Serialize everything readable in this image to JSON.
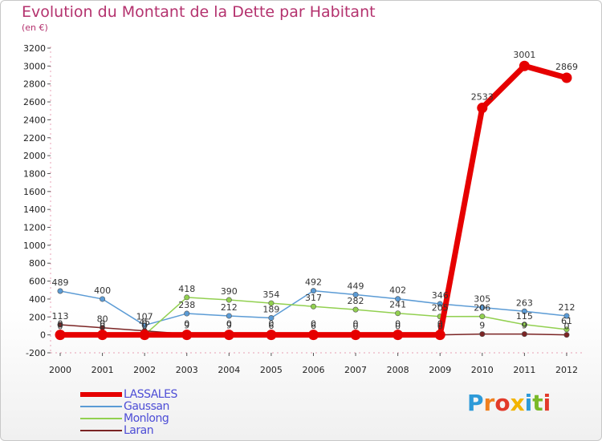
{
  "title": "Evolution du Montant de la Dette par Habitant",
  "subtitle": "(en €)",
  "logo_text": "Proxiti",
  "chart_data": {
    "type": "line",
    "x": [
      2000,
      2001,
      2002,
      2003,
      2004,
      2005,
      2006,
      2007,
      2008,
      2009,
      2010,
      2011,
      2012
    ],
    "ylim": [
      -200,
      3200
    ],
    "yticks": [
      -200,
      0,
      200,
      400,
      600,
      800,
      1000,
      1200,
      1400,
      1600,
      1800,
      2000,
      2200,
      2400,
      2600,
      2800,
      3000,
      3200
    ],
    "grid": false,
    "legend_position": "bottom-left",
    "series": [
      {
        "name": "Gaussan",
        "color": "#5b9bd5",
        "values": [
          489,
          400,
          107,
          238,
          212,
          189,
          492,
          449,
          402,
          346,
          305,
          263,
          212
        ],
        "labels": [
          "489",
          "400",
          "107",
          "238",
          "212",
          "189",
          "492",
          "449",
          "402",
          "346",
          "305",
          "263",
          "212"
        ]
      },
      {
        "name": "Monlong",
        "color": "#92d050",
        "values": [
          0,
          0,
          0,
          418,
          390,
          354,
          317,
          282,
          241,
          205,
          206,
          115,
          61
        ],
        "labels": [
          "0",
          "0",
          "0",
          "418",
          "390",
          "354",
          "317",
          "282",
          "241",
          "205",
          "206",
          "115",
          "61"
        ]
      },
      {
        "name": "Laran",
        "color": "#7b2424",
        "values": [
          113,
          80,
          45,
          9,
          9,
          6,
          6,
          0,
          0,
          0,
          9,
          9,
          0
        ],
        "labels": [
          "113",
          "80",
          "45",
          "9",
          "9",
          "6",
          "6",
          "0",
          "0",
          "0",
          "9",
          "9",
          "0"
        ]
      },
      {
        "name": "LASSALES",
        "color": "#e60000",
        "values": [
          0,
          0,
          0,
          0,
          0,
          0,
          0,
          0,
          0,
          0,
          2533,
          3001,
          2869
        ],
        "labels": [
          "0",
          "0",
          "0",
          "0",
          "0",
          "0",
          "0",
          "0",
          "0",
          "0",
          "2533",
          "3001",
          "2869"
        ]
      }
    ],
    "legend": [
      {
        "name": "LASSALES",
        "color": "#e60000"
      },
      {
        "name": "Gaussan",
        "color": "#5b9bd5"
      },
      {
        "name": "Monlong",
        "color": "#92d050"
      },
      {
        "name": "Laran",
        "color": "#7b2424"
      }
    ]
  }
}
